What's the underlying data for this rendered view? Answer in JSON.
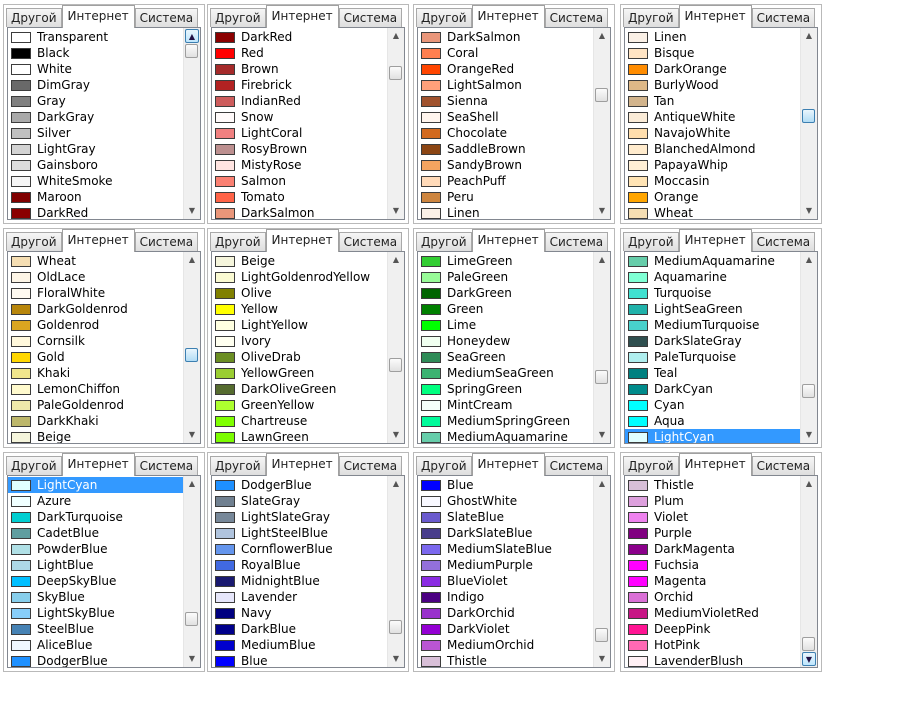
{
  "tabs": [
    "Другой",
    "Интернет",
    "Система"
  ],
  "panels": [
    {
      "items": [
        [
          "Transparent",
          "#ffffff"
        ],
        [
          "Black",
          "#000000"
        ],
        [
          "White",
          "#ffffff"
        ],
        [
          "DimGray",
          "#696969"
        ],
        [
          "Gray",
          "#808080"
        ],
        [
          "DarkGray",
          "#a9a9a9"
        ],
        [
          "Silver",
          "#c0c0c0"
        ],
        [
          "LightGray",
          "#d3d3d3"
        ],
        [
          "Gainsboro",
          "#dcdcdc"
        ],
        [
          "WhiteSmoke",
          "#f5f5f5"
        ],
        [
          "Maroon",
          "#800000"
        ],
        [
          "DarkRed",
          "#8b0000"
        ]
      ],
      "scroll": 0.0,
      "selected": -1
    },
    {
      "items": [
        [
          "DarkRed",
          "#8b0000"
        ],
        [
          "Red",
          "#ff0000"
        ],
        [
          "Brown",
          "#a52a2a"
        ],
        [
          "Firebrick",
          "#b22222"
        ],
        [
          "IndianRed",
          "#cd5c5c"
        ],
        [
          "Snow",
          "#fffafa"
        ],
        [
          "LightCoral",
          "#f08080"
        ],
        [
          "RosyBrown",
          "#bc8f8f"
        ],
        [
          "MistyRose",
          "#ffe4e1"
        ],
        [
          "Salmon",
          "#fa8072"
        ],
        [
          "Tomato",
          "#ff6347"
        ],
        [
          "DarkSalmon",
          "#e9967a"
        ]
      ],
      "scroll": 0.15,
      "selected": -1
    },
    {
      "items": [
        [
          "DarkSalmon",
          "#e9967a"
        ],
        [
          "Coral",
          "#ff7f50"
        ],
        [
          "OrangeRed",
          "#ff4500"
        ],
        [
          "LightSalmon",
          "#ffa07a"
        ],
        [
          "Sienna",
          "#a0522d"
        ],
        [
          "SeaShell",
          "#fff5ee"
        ],
        [
          "Chocolate",
          "#d2691e"
        ],
        [
          "SaddleBrown",
          "#8b4513"
        ],
        [
          "SandyBrown",
          "#f4a460"
        ],
        [
          "PeachPuff",
          "#ffdab9"
        ],
        [
          "Peru",
          "#cd853f"
        ],
        [
          "Linen",
          "#faf0e6"
        ]
      ],
      "scroll": 0.3,
      "selected": -1
    },
    {
      "items": [
        [
          "Linen",
          "#faf0e6"
        ],
        [
          "Bisque",
          "#ffe4c4"
        ],
        [
          "DarkOrange",
          "#ff8c00"
        ],
        [
          "BurlyWood",
          "#deb887"
        ],
        [
          "Tan",
          "#d2b48c"
        ],
        [
          "AntiqueWhite",
          "#faebd7"
        ],
        [
          "NavajoWhite",
          "#ffdead"
        ],
        [
          "BlanchedAlmond",
          "#ffebcd"
        ],
        [
          "PapayaWhip",
          "#ffefd5"
        ],
        [
          "Moccasin",
          "#ffe4b5"
        ],
        [
          "Orange",
          "#ffa500"
        ],
        [
          "Wheat",
          "#f5deb3"
        ]
      ],
      "scroll": 0.45,
      "selected": -1
    },
    {
      "items": [
        [
          "Wheat",
          "#f5deb3"
        ],
        [
          "OldLace",
          "#fdf5e6"
        ],
        [
          "FloralWhite",
          "#fffaf0"
        ],
        [
          "DarkGoldenrod",
          "#b8860b"
        ],
        [
          "Goldenrod",
          "#daa520"
        ],
        [
          "Cornsilk",
          "#fff8dc"
        ],
        [
          "Gold",
          "#ffd700"
        ],
        [
          "Khaki",
          "#f0e68c"
        ],
        [
          "LemonChiffon",
          "#fffacd"
        ],
        [
          "PaleGoldenrod",
          "#eee8aa"
        ],
        [
          "DarkKhaki",
          "#bdb76b"
        ],
        [
          "Beige",
          "#f5f5dc"
        ]
      ],
      "scroll": 0.55,
      "selected": -1
    },
    {
      "items": [
        [
          "Beige",
          "#f5f5dc"
        ],
        [
          "LightGoldenrodYellow",
          "#fafad2"
        ],
        [
          "Olive",
          "#808000"
        ],
        [
          "Yellow",
          "#ffff00"
        ],
        [
          "LightYellow",
          "#ffffe0"
        ],
        [
          "Ivory",
          "#fffff0"
        ],
        [
          "OliveDrab",
          "#6b8e23"
        ],
        [
          "YellowGreen",
          "#9acd32"
        ],
        [
          "DarkOliveGreen",
          "#556b2f"
        ],
        [
          "GreenYellow",
          "#adff2f"
        ],
        [
          "Chartreuse",
          "#7fff00"
        ],
        [
          "LawnGreen",
          "#7cfc00"
        ]
      ],
      "scroll": 0.62,
      "selected": -1
    },
    {
      "items": [
        [
          "LimeGreen",
          "#32cd32"
        ],
        [
          "PaleGreen",
          "#98fb98"
        ],
        [
          "DarkGreen",
          "#006400"
        ],
        [
          "Green",
          "#008000"
        ],
        [
          "Lime",
          "#00ff00"
        ],
        [
          "Honeydew",
          "#f0fff0"
        ],
        [
          "SeaGreen",
          "#2e8b57"
        ],
        [
          "MediumSeaGreen",
          "#3cb371"
        ],
        [
          "SpringGreen",
          "#00ff7f"
        ],
        [
          "MintCream",
          "#f5fffa"
        ],
        [
          "MediumSpringGreen",
          "#00fa9a"
        ],
        [
          "MediumAquamarine",
          "#66cdaa"
        ]
      ],
      "scroll": 0.7,
      "selected": -1
    },
    {
      "items": [
        [
          "MediumAquamarine",
          "#66cdaa"
        ],
        [
          "Aquamarine",
          "#7fffd4"
        ],
        [
          "Turquoise",
          "#40e0d0"
        ],
        [
          "LightSeaGreen",
          "#20b2aa"
        ],
        [
          "MediumTurquoise",
          "#48d1cc"
        ],
        [
          "DarkSlateGray",
          "#2f4f4f"
        ],
        [
          "PaleTurquoise",
          "#afeeee"
        ],
        [
          "Teal",
          "#008080"
        ],
        [
          "DarkCyan",
          "#008b8b"
        ],
        [
          "Cyan",
          "#00ffff"
        ],
        [
          "Aqua",
          "#00ffff"
        ],
        [
          "LightCyan",
          "#e0ffff"
        ]
      ],
      "scroll": 0.8,
      "selected": 11
    },
    {
      "items": [
        [
          "LightCyan",
          "#e0ffff"
        ],
        [
          "Azure",
          "#f0ffff"
        ],
        [
          "DarkTurquoise",
          "#00ced1"
        ],
        [
          "CadetBlue",
          "#5f9ea0"
        ],
        [
          "PowderBlue",
          "#b0e0e6"
        ],
        [
          "LightBlue",
          "#add8e6"
        ],
        [
          "DeepSkyBlue",
          "#00bfff"
        ],
        [
          "SkyBlue",
          "#87ceeb"
        ],
        [
          "LightSkyBlue",
          "#87cefa"
        ],
        [
          "SteelBlue",
          "#4682b4"
        ],
        [
          "AliceBlue",
          "#f0f8ff"
        ],
        [
          "DodgerBlue",
          "#1e90ff"
        ]
      ],
      "scroll": 0.83,
      "selected": 0
    },
    {
      "items": [
        [
          "DodgerBlue",
          "#1e90ff"
        ],
        [
          "SlateGray",
          "#708090"
        ],
        [
          "LightSlateGray",
          "#778899"
        ],
        [
          "LightSteelBlue",
          "#b0c4de"
        ],
        [
          "CornflowerBlue",
          "#6495ed"
        ],
        [
          "RoyalBlue",
          "#4169e1"
        ],
        [
          "MidnightBlue",
          "#191970"
        ],
        [
          "Lavender",
          "#e6e6fa"
        ],
        [
          "Navy",
          "#000080"
        ],
        [
          "DarkBlue",
          "#00008b"
        ],
        [
          "MediumBlue",
          "#0000cd"
        ],
        [
          "Blue",
          "#0000ff"
        ]
      ],
      "scroll": 0.88,
      "selected": -1
    },
    {
      "items": [
        [
          "Blue",
          "#0000ff"
        ],
        [
          "GhostWhite",
          "#f8f8ff"
        ],
        [
          "SlateBlue",
          "#6a5acd"
        ],
        [
          "DarkSlateBlue",
          "#483d8b"
        ],
        [
          "MediumSlateBlue",
          "#7b68ee"
        ],
        [
          "MediumPurple",
          "#9370db"
        ],
        [
          "BlueViolet",
          "#8a2be2"
        ],
        [
          "Indigo",
          "#4b0082"
        ],
        [
          "DarkOrchid",
          "#9932cc"
        ],
        [
          "DarkViolet",
          "#9400d3"
        ],
        [
          "MediumOrchid",
          "#ba55d3"
        ],
        [
          "Thistle",
          "#d8bfd8"
        ]
      ],
      "scroll": 0.94,
      "selected": -1
    },
    {
      "items": [
        [
          "Thistle",
          "#d8bfd8"
        ],
        [
          "Plum",
          "#dda0dd"
        ],
        [
          "Violet",
          "#ee82ee"
        ],
        [
          "Purple",
          "#800080"
        ],
        [
          "DarkMagenta",
          "#8b008b"
        ],
        [
          "Fuchsia",
          "#ff00ff"
        ],
        [
          "Magenta",
          "#ff00ff"
        ],
        [
          "Orchid",
          "#da70d6"
        ],
        [
          "MediumVioletRed",
          "#c71585"
        ],
        [
          "DeepPink",
          "#ff1493"
        ],
        [
          "HotPink",
          "#ff69b4"
        ],
        [
          "LavenderBlush",
          "#fff0f5"
        ]
      ],
      "scroll": 1.0,
      "selected": -1
    }
  ]
}
